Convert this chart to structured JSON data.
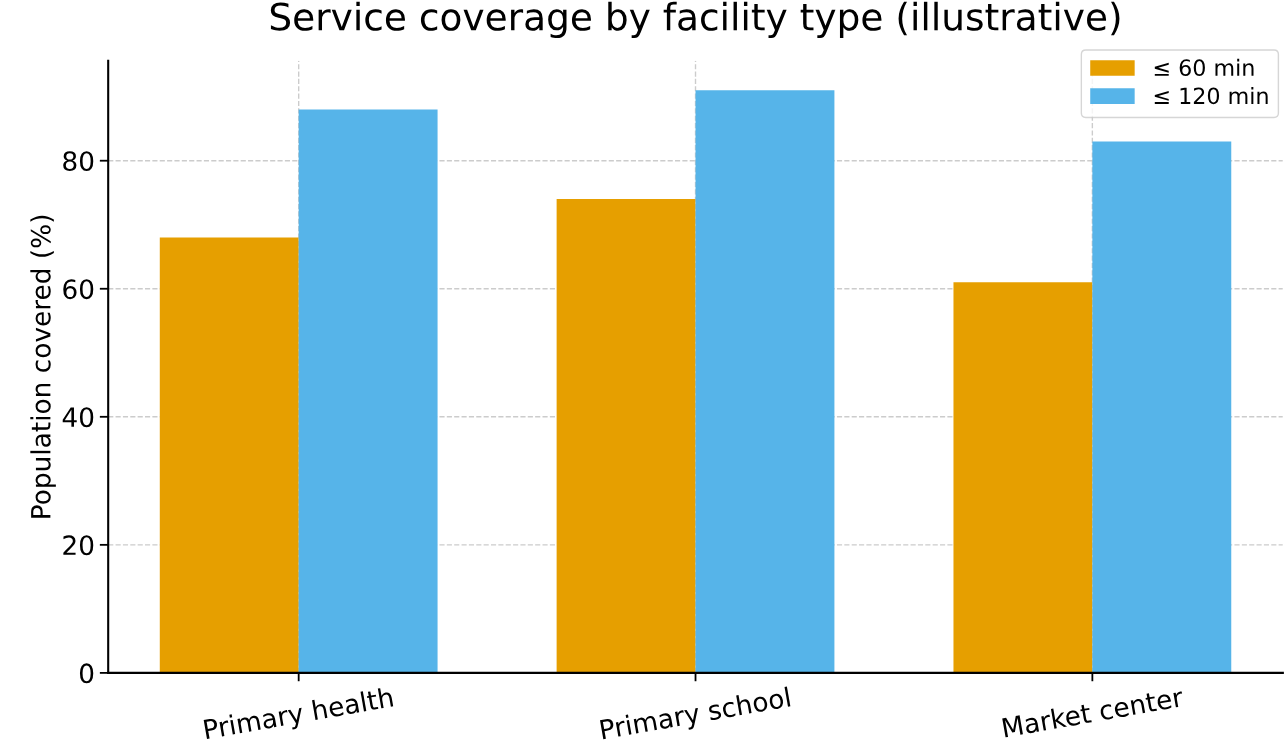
{
  "chart_data": {
    "type": "bar",
    "title": "Service coverage by facility type (illustrative)",
    "ylabel": "Population covered (%)",
    "categories": [
      "Primary health",
      "Primary school",
      "Market center"
    ],
    "series": [
      {
        "name": "≤ 60 min",
        "color": "#e69f00",
        "values": [
          68,
          74,
          61
        ]
      },
      {
        "name": "≤ 120 min",
        "color": "#56b4e9",
        "values": [
          88,
          91,
          83
        ]
      }
    ],
    "ylim": [
      0,
      95.6
    ],
    "yticks": [
      0,
      20,
      40,
      60,
      80
    ],
    "grid": true,
    "legend": "top right"
  }
}
